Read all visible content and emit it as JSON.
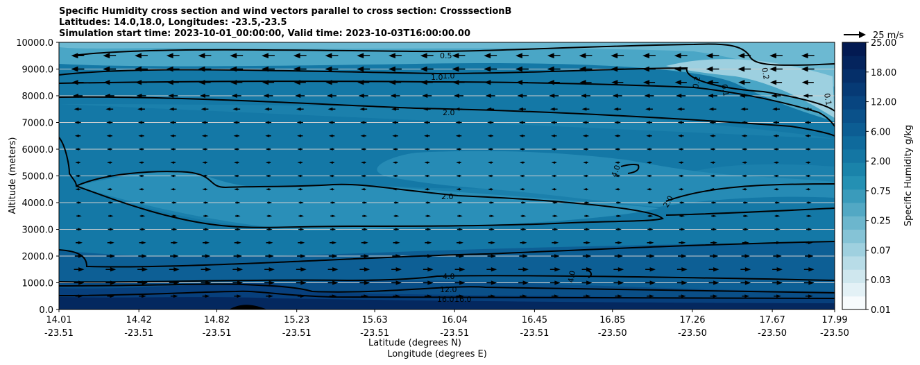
{
  "chart_data": {
    "type": "heatmap",
    "title_lines": [
      "Specific Humidity cross section and wind vectors parallel to cross section: CrosssectionB",
      "Latitudes: 14.0,18.0, Longitudes: -23.5,-23.5",
      "Simulation start time: 2023-10-01_00:00:00, Valid time: 2023-10-03T16:00:00.00"
    ],
    "ylabel": "Altitude (meters)",
    "xlabel_lat": "Latitude (degrees N)",
    "xlabel_lon": "Longitude (degrees E)",
    "ylim": [
      0,
      10000
    ],
    "yticks": [
      "0.0",
      "1000.0",
      "2000.0",
      "3000.0",
      "4000.0",
      "5000.0",
      "6000.0",
      "7000.0",
      "8000.0",
      "9000.0",
      "10000.0"
    ],
    "ytick_values": [
      0,
      1000,
      2000,
      3000,
      4000,
      5000,
      6000,
      7000,
      8000,
      9000,
      10000
    ],
    "xlim": [
      14.01,
      17.99
    ],
    "xticks_lat": [
      "14.01",
      "14.42",
      "14.82",
      "15.23",
      "15.63",
      "16.04",
      "16.45",
      "16.85",
      "17.26",
      "17.67",
      "17.99"
    ],
    "xticks_lon": [
      "-23.51",
      "-23.51",
      "-23.51",
      "-23.51",
      "-23.51",
      "-23.51",
      "-23.51",
      "-23.50",
      "-23.50",
      "-23.50",
      "-23.50"
    ],
    "xtick_values": [
      14.01,
      14.42,
      14.82,
      15.23,
      15.63,
      16.04,
      16.45,
      16.85,
      17.26,
      17.67,
      17.99
    ],
    "colorbar": {
      "label": "Specific Humidity g/kg",
      "ticks": [
        "0.01",
        "0.03",
        "0.07",
        "0.25",
        "0.75",
        "2.00",
        "6.00",
        "12.00",
        "18.00",
        "25.00"
      ],
      "colors": [
        "#f7fbfd",
        "#e3f1f6",
        "#cfe7ee",
        "#b8dce7",
        "#9fd0df",
        "#85c3d6",
        "#6cb6cd",
        "#52a8c4",
        "#3a9bbb",
        "#2490b3",
        "#1a83aa",
        "#1476a3",
        "#0f6a9c",
        "#0c5d93",
        "#0a518a",
        "#084580",
        "#063a75",
        "#052f69",
        "#04245d",
        "#031a52"
      ]
    },
    "contour_labels": [
      "0.5",
      "1.0",
      "1.0",
      "2.0",
      "2.0",
      "2.0",
      "4.0",
      "4.0",
      "4.0",
      "12.0",
      "16.0",
      "16.0",
      "0.2",
      "0.2",
      "0.1",
      "0.1"
    ],
    "wind_key": "25 m/s",
    "wind_rows": [
      {
        "alt": 9500,
        "dir": "left",
        "len": 0.8
      },
      {
        "alt": 9000,
        "dir": "left",
        "len": 0.8
      },
      {
        "alt": 8500,
        "dir": "left",
        "len": 0.7
      },
      {
        "alt": 8000,
        "dir": "left",
        "len": 0.5
      },
      {
        "alt": 7500,
        "dir": "left",
        "len": 0.3
      },
      {
        "alt": 7000,
        "dir": "left",
        "len": 0.2
      },
      {
        "alt": 6500,
        "dir": "left",
        "len": 0.15
      },
      {
        "alt": 6000,
        "dir": "left",
        "len": 0.1
      },
      {
        "alt": 5500,
        "dir": "left",
        "len": 0.08
      },
      {
        "alt": 5000,
        "dir": "left",
        "len": 0.08
      },
      {
        "alt": 4500,
        "dir": "left",
        "len": 0.08
      },
      {
        "alt": 4000,
        "dir": "right",
        "len": 0.08
      },
      {
        "alt": 3500,
        "dir": "right",
        "len": 0.1
      },
      {
        "alt": 3000,
        "dir": "right",
        "len": 0.15
      },
      {
        "alt": 2500,
        "dir": "right",
        "len": 0.25
      },
      {
        "alt": 2000,
        "dir": "right",
        "len": 0.4
      },
      {
        "alt": 1500,
        "dir": "right",
        "len": 0.55
      },
      {
        "alt": 1000,
        "dir": "right",
        "len": 0.55
      },
      {
        "alt": 500,
        "dir": "right",
        "len": 0.3
      }
    ]
  }
}
